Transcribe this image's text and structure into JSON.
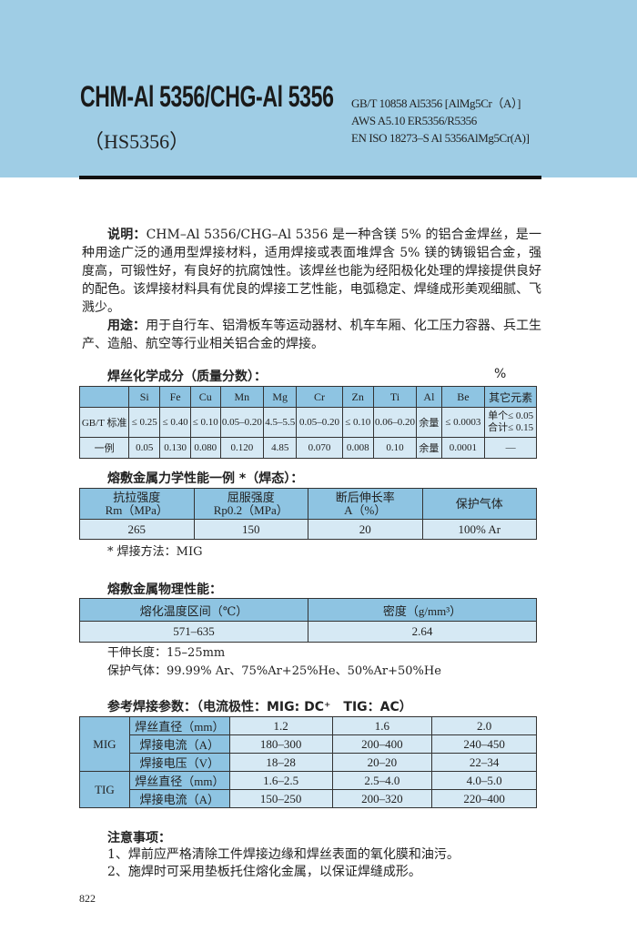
{
  "header": {
    "title": "CHM-Al 5356/CHG-Al 5356",
    "subtitle": "（HS5356）",
    "standards": [
      "GB/T 10858 Al5356 [AlMg5Cr（A）]",
      "AWS A5.10 ER5356/R5356",
      "EN ISO 18273–S Al 5356AlMg5Cr(A)]"
    ]
  },
  "description": {
    "label": "说明：",
    "text": "CHM–Al 5356/CHG–Al 5356 是一种含镁 5% 的铝合金焊丝，是一种用途广泛的通用型焊接材料，适用焊接或表面堆焊含 5% 镁的铸锻铝合金，强度高，可锻性好，有良好的抗腐蚀性。该焊丝也能为经阳极化处理的焊接提供良好的配色。该焊接材料具有优良的焊接工艺性能，电弧稳定、焊缝成形美观细腻、飞溅少。",
    "usage_label": "用途：",
    "usage": "用于自行车、铝滑板车等运动器材、机车车厢、化工压力容器、兵工生产、造船、航空等行业相关铝合金的焊接。"
  },
  "chemical": {
    "title": "焊丝化学成分（质量分数）：",
    "unit": "%",
    "headers": [
      "",
      "Si",
      "Fe",
      "Cu",
      "Mn",
      "Mg",
      "Cr",
      "Zn",
      "Ti",
      "Al",
      "Be",
      "其它元素"
    ],
    "rows": [
      [
        "GB/T 标准",
        "≤ 0.25",
        "≤ 0.40",
        "≤ 0.10",
        "0.05–0.20",
        "4.5–5.5",
        "0.05–0.20",
        "≤ 0.10",
        "0.06–0.20",
        "余量",
        "≤ 0.0003",
        "单个≤ 0.05",
        "合计≤ 0.15"
      ],
      [
        "一例",
        "0.05",
        "0.130",
        "0.080",
        "0.120",
        "4.85",
        "0.070",
        "0.008",
        "0.10",
        "余量",
        "0.0001",
        "—"
      ]
    ]
  },
  "mechanical": {
    "title": "熔敷金属力学性能一例 *（焊态）：",
    "headers": [
      [
        "抗拉强度",
        "Rm（MPa）"
      ],
      [
        "屈服强度",
        "Rp0.2（MPa）"
      ],
      [
        "断后伸长率",
        "A（%）"
      ],
      [
        "保护气体",
        ""
      ]
    ],
    "values": [
      "265",
      "150",
      "20",
      "100% Ar"
    ],
    "footnote": "* 焊接方法：MIG"
  },
  "physical": {
    "title": "熔敷金属物理性能：",
    "headers": [
      "熔化温度区间（℃）",
      "密度（g/mm³）"
    ],
    "values": [
      "571–635",
      "2.64"
    ],
    "stickout": "干伸长度：15–25mm",
    "gas": "保护气体：99.99% Ar、75%Ar+25%He、50%Ar+50%He"
  },
  "params": {
    "title": "参考焊接参数：（电流极性：MIG: DC⁺　TIG：AC）",
    "groups": [
      {
        "name": "MIG",
        "rows": [
          [
            "焊丝直径（mm）",
            "1.2",
            "1.6",
            "2.0"
          ],
          [
            "焊接电流（A）",
            "180–300",
            "200–400",
            "240–450"
          ],
          [
            "焊接电压（V）",
            "18–28",
            "20–20",
            "22–34"
          ]
        ]
      },
      {
        "name": "TIG",
        "rows": [
          [
            "焊丝直径（mm）",
            "1.6–2.5",
            "2.5–4.0",
            "4.0–5.0"
          ],
          [
            "焊接电流（A）",
            "150–250",
            "200–320",
            "220–400"
          ]
        ]
      }
    ]
  },
  "notes": {
    "title": "注意事项：",
    "items": [
      "1、焊前应严格清除工件焊接边缘和焊丝表面的氧化膜和油污。",
      "2、施焊时可采用垫板托住熔化金属，以保证焊缝成形。"
    ]
  },
  "page_number": "822"
}
